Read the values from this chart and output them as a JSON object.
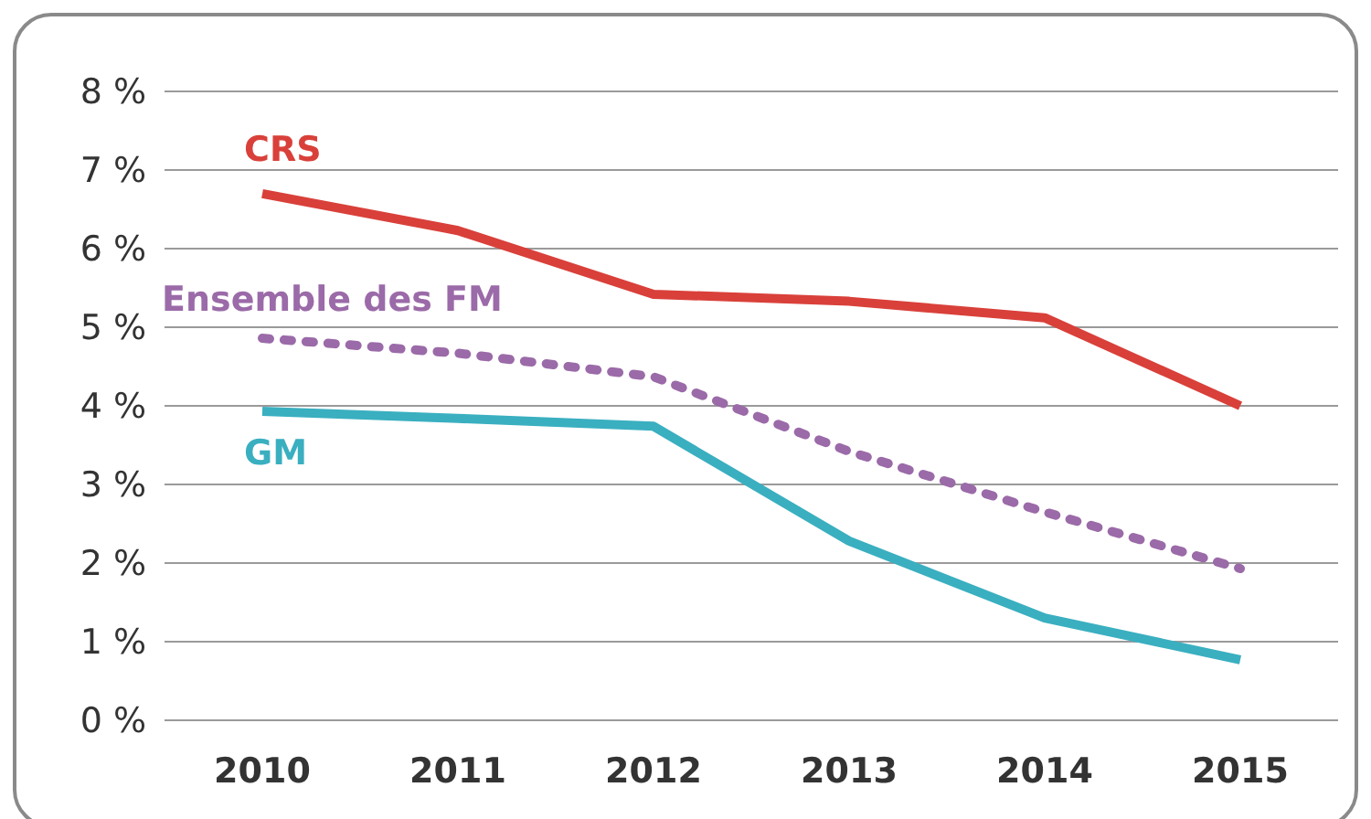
{
  "chart_data": {
    "type": "line",
    "categories": [
      "2010",
      "2011",
      "2012",
      "2013",
      "2014",
      "2015"
    ],
    "ylim": [
      0,
      8
    ],
    "yticks": [
      {
        "value": 0,
        "label": "0 %"
      },
      {
        "value": 1,
        "label": "1 %"
      },
      {
        "value": 2,
        "label": "2 %"
      },
      {
        "value": 3,
        "label": "3 %"
      },
      {
        "value": 4,
        "label": "4 %"
      },
      {
        "value": 5,
        "label": "5 %"
      },
      {
        "value": 6,
        "label": "6 %"
      },
      {
        "value": 7,
        "label": "7 %"
      },
      {
        "value": 8,
        "label": "8 %"
      }
    ],
    "grid": "y",
    "marker": "none",
    "series": [
      {
        "name": "CRS",
        "color": "#d9403a",
        "line_style": "solid",
        "values": [
          6.7,
          6.23,
          5.42,
          5.33,
          5.12,
          4.0
        ]
      },
      {
        "name": "Ensemble des FM",
        "color": "#9b6aa8",
        "line_style": "dotted",
        "values": [
          4.86,
          4.67,
          4.37,
          3.42,
          2.65,
          1.93
        ]
      },
      {
        "name": "GM",
        "color": "#3aafc0",
        "line_style": "solid",
        "values": [
          3.93,
          3.84,
          3.74,
          2.28,
          1.3,
          0.77
        ]
      }
    ]
  }
}
